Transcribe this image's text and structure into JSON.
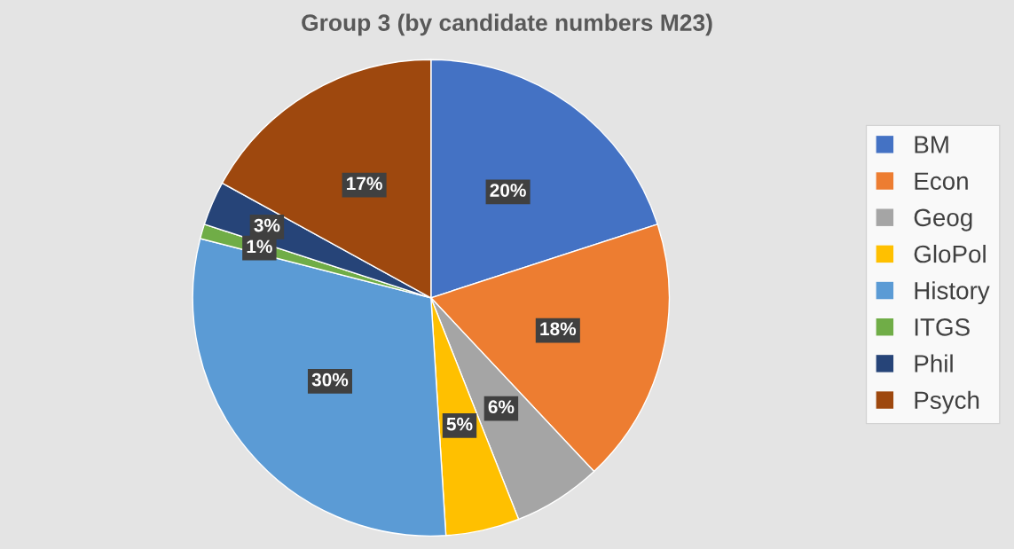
{
  "chart_data": {
    "type": "pie",
    "title": "Group 3 (by candidate numbers M23)",
    "categories": [
      "BM",
      "Econ",
      "Geog",
      "GloPol",
      "History",
      "ITGS",
      "Phil",
      "Psych"
    ],
    "values": [
      20,
      18,
      6,
      5,
      30,
      1,
      3,
      17
    ],
    "colors": [
      "#4472c4",
      "#ed7d31",
      "#a5a5a5",
      "#ffc000",
      "#5b9bd5",
      "#70ad47",
      "#264478",
      "#9e480e"
    ],
    "value_labels": [
      "20%",
      "18%",
      "6%",
      "5%",
      "30%",
      "1%",
      "3%",
      "17%"
    ],
    "legend": "right"
  }
}
